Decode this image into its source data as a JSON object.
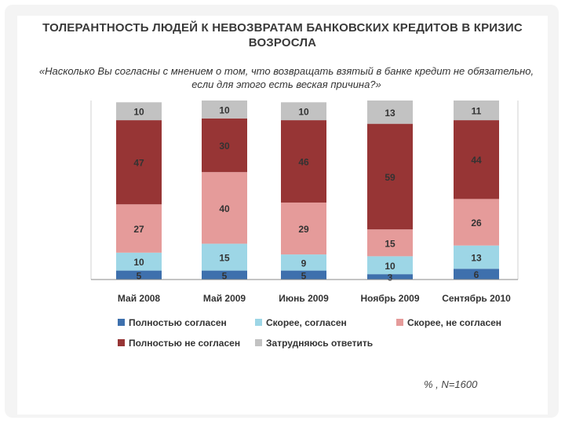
{
  "title": "ТОЛЕРАНТНОСТЬ ЛЮДЕЙ К НЕВОЗВРАТАМ БАНКОВСКИХ КРЕДИТОВ В КРИЗИС ВОЗРОСЛА",
  "question": "«Насколько Вы согласны с мнением о том, что возвращать взятый в банке кредит не обязательно, если для этого есть веская причина?»",
  "note": "% , N=1600",
  "chart_data": {
    "type": "bar",
    "stacked": true,
    "categories": [
      "Май 2008",
      "Май 2009",
      "Июнь 2009",
      "Ноябрь 2009",
      "Сентябрь 2010"
    ],
    "series": [
      {
        "name": "Полностью согласен",
        "color": "#3e70ad",
        "values": [
          5,
          5,
          5,
          3,
          6
        ]
      },
      {
        "name": "Скорее, согласен",
        "color": "#9dd6e6",
        "values": [
          10,
          15,
          9,
          10,
          13
        ]
      },
      {
        "name": "Скорее, не согласен",
        "color": "#e59b9a",
        "values": [
          27,
          40,
          29,
          15,
          26
        ]
      },
      {
        "name": "Полностью не согласен",
        "color": "#973535",
        "values": [
          47,
          30,
          46,
          59,
          44
        ]
      },
      {
        "name": "Затрудняюсь ответить",
        "color": "#c2c2c2",
        "values": [
          10,
          10,
          10,
          13,
          11
        ]
      }
    ],
    "ylim": [
      0,
      100
    ],
    "legend_position": "bottom",
    "grid": false
  }
}
